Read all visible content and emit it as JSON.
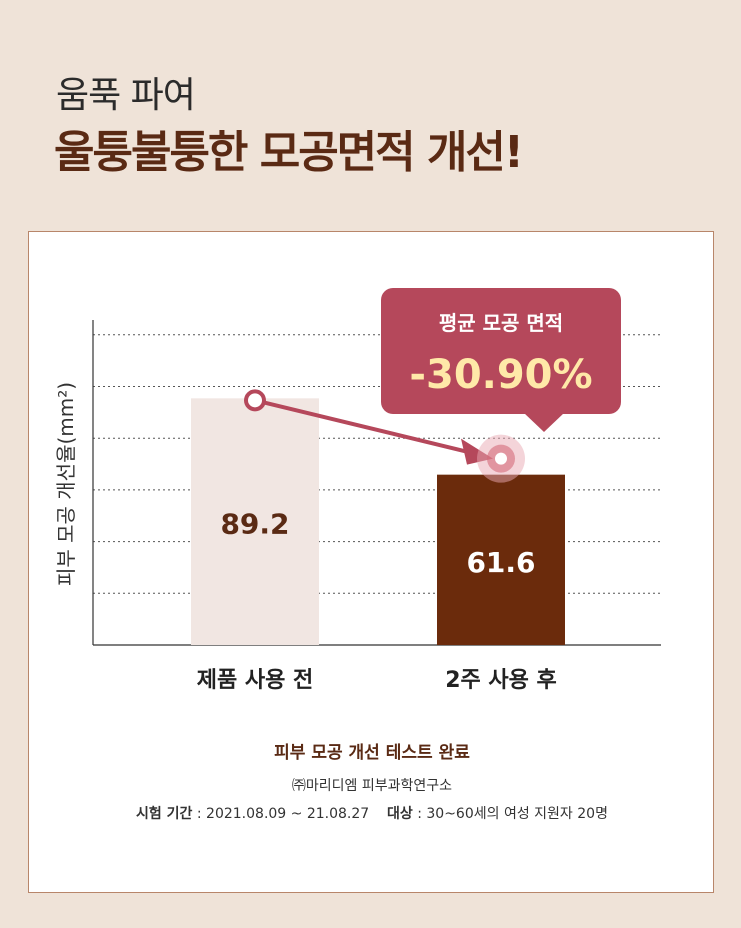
{
  "headline": {
    "sub": "움푹 파여",
    "main": "울퉁불퉁한 모공면적 개선!"
  },
  "colors": {
    "background": "#efe3d8",
    "before_bar": "#f1e6e2",
    "after_bar": "#6b2b0c",
    "callout": "#b5485b",
    "callout_value": "#ffe9a8",
    "arrow": "#b5485b",
    "accent_text": "#5a2a14"
  },
  "chart_data": {
    "type": "bar",
    "ylabel": "피부 모공 개선율(mm²)",
    "categories": [
      "제품 사용 전",
      "2주 사용 후"
    ],
    "values": [
      89.2,
      61.6
    ],
    "value_labels": [
      "89.2",
      "61.6"
    ],
    "ylim": [
      0,
      115
    ],
    "grid": true,
    "annotation": {
      "title": "평균 모공 면적",
      "value": "-30.90%"
    }
  },
  "footer": {
    "title": "피부 모공 개선 테스트 완료",
    "lab": "㈜마리디엠 피부과학연구소",
    "period_label": "시험 기간",
    "period_value": " : 2021.08.09 ~ 21.08.27",
    "subject_label": "대상",
    "subject_value": " : 30~60세의 여성 지원자 20명"
  }
}
